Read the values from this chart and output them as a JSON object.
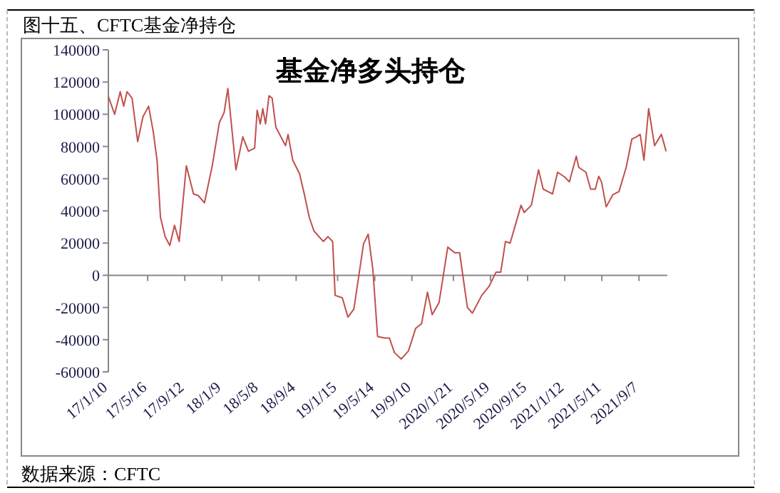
{
  "chart_data": {
    "type": "line",
    "title": "图十五、CFTC基金净持仓",
    "subtitle": "基金净多头持仓",
    "annotations": [
      "数据来源：CFTC"
    ],
    "series": [
      {
        "color": "#c0504d",
        "x": [
          "2017-01-10",
          "2017-01-30",
          "2017-02-17",
          "2017-02-28",
          "2017-03-11",
          "2017-03-27",
          "2017-04-14",
          "2017-05-01",
          "2017-05-19",
          "2017-06-03",
          "2017-06-15",
          "2017-06-26",
          "2017-07-11",
          "2017-07-26",
          "2017-08-10",
          "2017-08-25",
          "2017-09-17",
          "2017-10-10",
          "2017-10-25",
          "2017-11-14",
          "2017-12-09",
          "2018-01-01",
          "2018-01-16",
          "2018-01-28",
          "2018-02-23",
          "2018-03-17",
          "2018-04-04",
          "2018-04-24",
          "2018-05-02",
          "2018-05-12",
          "2018-05-20",
          "2018-05-29",
          "2018-06-09",
          "2018-06-19",
          "2018-07-01",
          "2018-08-01",
          "2018-08-09",
          "2018-08-24",
          "2018-09-15",
          "2018-09-30",
          "2018-10-16",
          "2018-10-31",
          "2018-11-30",
          "2018-12-15",
          "2018-12-30",
          "2019-01-07",
          "2019-01-30",
          "2019-02-17",
          "2019-03-08",
          "2019-04-08",
          "2019-04-23",
          "2019-05-08",
          "2019-05-23",
          "2019-06-15",
          "2019-06-30",
          "2019-07-16",
          "2019-08-07",
          "2019-08-30",
          "2019-09-22",
          "2019-10-11",
          "2019-10-30",
          "2019-11-14",
          "2019-12-06",
          "2020-01-03",
          "2020-01-25",
          "2020-02-10",
          "2020-03-06",
          "2020-03-22",
          "2020-04-21",
          "2020-05-14",
          "2020-06-06",
          "2020-06-21",
          "2020-07-06",
          "2020-07-21",
          "2020-08-05",
          "2020-08-25",
          "2020-09-04",
          "2020-09-27",
          "2020-10-20",
          "2020-11-04",
          "2020-11-19",
          "2020-12-04",
          "2020-12-20",
          "2021-01-12",
          "2021-01-27",
          "2021-02-18",
          "2021-02-26",
          "2021-03-21",
          "2021-04-05",
          "2021-04-20",
          "2021-05-01",
          "2021-05-10",
          "2021-05-25",
          "2021-06-15",
          "2021-07-05",
          "2021-07-28",
          "2021-08-15",
          "2021-08-30",
          "2021-09-11",
          "2021-09-23",
          "2021-10-08",
          "2021-10-27",
          "2021-11-18",
          "2021-12-03"
        ],
        "values": [
          111000,
          100000,
          114000,
          105000,
          114000,
          110000,
          83000,
          98500,
          105000,
          89000,
          71500,
          36000,
          24000,
          18500,
          31000,
          21000,
          68000,
          50500,
          49500,
          45000,
          68000,
          95000,
          101000,
          116000,
          65500,
          86000,
          77000,
          79000,
          102500,
          94000,
          103500,
          94000,
          111500,
          110000,
          92000,
          80500,
          87500,
          71500,
          63000,
          50500,
          36000,
          27500,
          21000,
          24000,
          21000,
          -12500,
          -14000,
          -26000,
          -21000,
          19500,
          25500,
          3500,
          -38000,
          -39000,
          -39000,
          -48000,
          -52000,
          -47000,
          -33000,
          -30000,
          -10500,
          -24500,
          -17000,
          17500,
          14000,
          14000,
          -20000,
          -23500,
          -12500,
          -7000,
          2000,
          2000,
          21000,
          20000,
          30000,
          43500,
          39000,
          43500,
          65500,
          53500,
          52000,
          50500,
          64000,
          61000,
          58000,
          74000,
          67000,
          64000,
          53500,
          53500,
          61500,
          58000,
          42500,
          50000,
          52000,
          67000,
          84500,
          86000,
          87500,
          71500,
          103500,
          80500,
          87500,
          77000
        ]
      }
    ],
    "xlim": [
      "2017-01-10",
      "2021-12-07"
    ],
    "xticks": [
      {
        "value": "2017-01-10",
        "label": "17/1/10"
      },
      {
        "value": "2017-05-16",
        "label": "17/5/16"
      },
      {
        "value": "2017-09-12",
        "label": "17/9/12"
      },
      {
        "value": "2018-01-09",
        "label": "18/1/9"
      },
      {
        "value": "2018-05-08",
        "label": "18/5/8"
      },
      {
        "value": "2018-09-04",
        "label": "18/9/4"
      },
      {
        "value": "2019-01-15",
        "label": "19/1/15"
      },
      {
        "value": "2019-05-14",
        "label": "19/5/14"
      },
      {
        "value": "2019-09-10",
        "label": "19/9/10"
      },
      {
        "value": "2020-01-21",
        "label": "2020/1/21"
      },
      {
        "value": "2020-05-19",
        "label": "2020/5/19"
      },
      {
        "value": "2020-09-15",
        "label": "2020/9/15"
      },
      {
        "value": "2021-01-12",
        "label": "2021/1/12"
      },
      {
        "value": "2021-05-11",
        "label": "2021/5/11"
      },
      {
        "value": "2021-09-07",
        "label": "2021/9/7"
      }
    ],
    "ylim": [
      -60000,
      140000
    ],
    "yticks": [
      -60000,
      -40000,
      -20000,
      0,
      20000,
      40000,
      60000,
      80000,
      100000,
      120000,
      140000
    ]
  }
}
